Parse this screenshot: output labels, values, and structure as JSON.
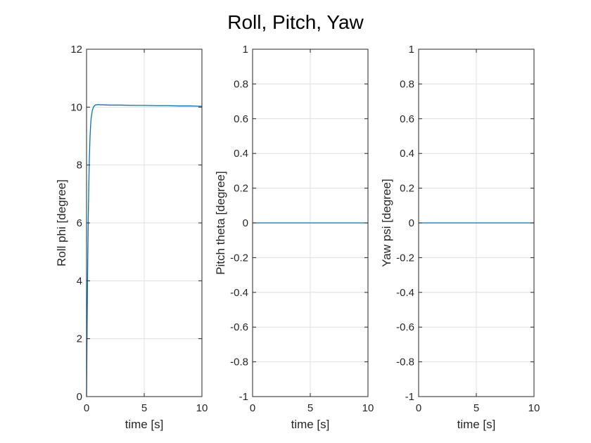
{
  "title": "Roll, Pitch, Yaw",
  "colors": {
    "series": "#0072bd",
    "grid": "#dfdfdf",
    "axis": "#262626"
  },
  "chart_data": [
    {
      "type": "line",
      "xlabel": "time [s]",
      "ylabel": "Roll phi [degree]",
      "xlim": [
        0,
        10
      ],
      "ylim": [
        0,
        12
      ],
      "xticks": [
        0,
        5,
        10
      ],
      "yticks": [
        0,
        2,
        4,
        6,
        8,
        10,
        12
      ],
      "grid": true,
      "series": [
        {
          "x": [
            0,
            0.05,
            0.1,
            0.15,
            0.2,
            0.25,
            0.3,
            0.35,
            0.4,
            0.5,
            0.6,
            0.7,
            0.8,
            0.9,
            1.0,
            1.2,
            1.5,
            2,
            3,
            4,
            5,
            6,
            7,
            8,
            9,
            10
          ],
          "y": [
            0,
            2.5,
            4.5,
            6.2,
            7.4,
            8.3,
            8.95,
            9.35,
            9.62,
            9.88,
            10.0,
            10.05,
            10.08,
            10.08,
            10.09,
            10.08,
            10.08,
            10.07,
            10.07,
            10.06,
            10.06,
            10.05,
            10.05,
            10.04,
            10.04,
            10.03
          ]
        }
      ]
    },
    {
      "type": "line",
      "xlabel": "time [s]",
      "ylabel": "Pitch theta [degree]",
      "xlim": [
        0,
        10
      ],
      "ylim": [
        -1,
        1
      ],
      "xticks": [
        0,
        5,
        10
      ],
      "yticks": [
        -1,
        -0.8,
        -0.6,
        -0.4,
        -0.2,
        0,
        0.2,
        0.4,
        0.6,
        0.8,
        1
      ],
      "grid": true,
      "series": [
        {
          "x": [
            0,
            10
          ],
          "y": [
            0,
            0
          ]
        }
      ]
    },
    {
      "type": "line",
      "xlabel": "time [s]",
      "ylabel": "Yaw psi [degree]",
      "xlim": [
        0,
        10
      ],
      "ylim": [
        -1,
        1
      ],
      "xticks": [
        0,
        5,
        10
      ],
      "yticks": [
        -1,
        -0.8,
        -0.6,
        -0.4,
        -0.2,
        0,
        0.2,
        0.4,
        0.6,
        0.8,
        1
      ],
      "grid": true,
      "series": [
        {
          "x": [
            0,
            10
          ],
          "y": [
            0,
            0
          ]
        }
      ]
    }
  ]
}
